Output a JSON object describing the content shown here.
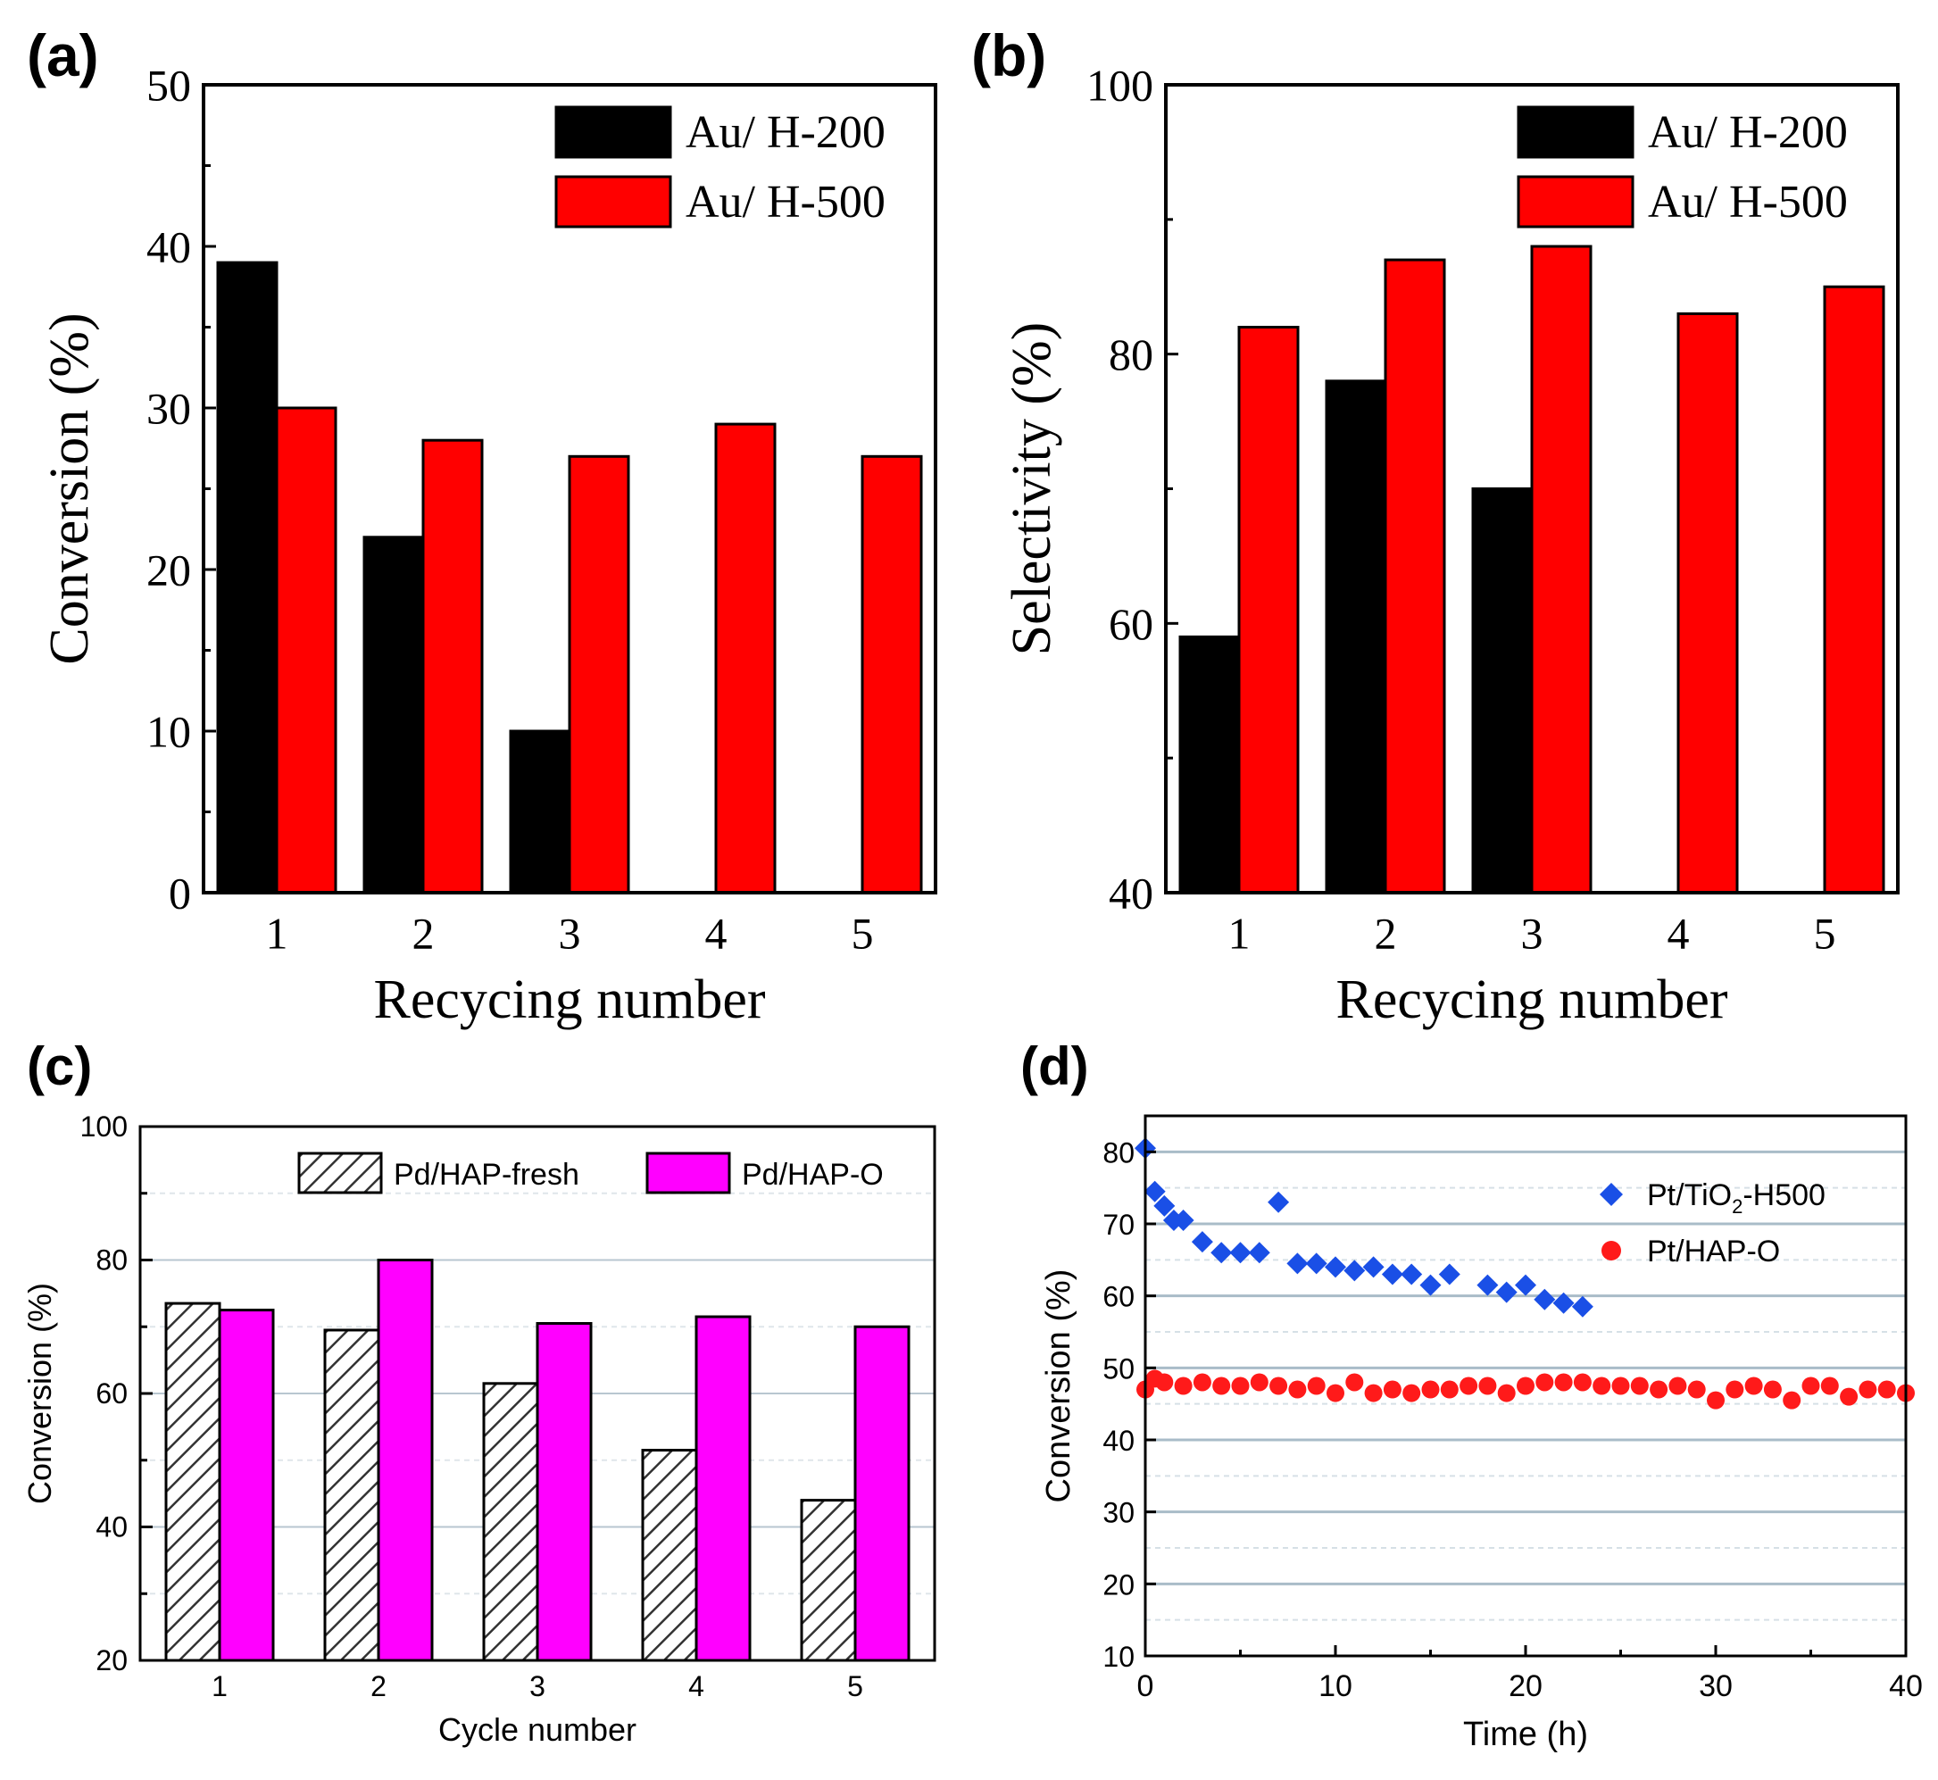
{
  "chart_data": [
    {
      "panel_label": "(a)",
      "type": "bar",
      "categories": [
        "1",
        "2",
        "3",
        "4",
        "5"
      ],
      "series": [
        {
          "name": "Au/ H-200",
          "values": [
            39,
            22,
            10,
            null,
            null
          ],
          "color": "#000000"
        },
        {
          "name": "Au/ H-500",
          "values": [
            30,
            28,
            27,
            29,
            27
          ],
          "color": "#ff0000"
        }
      ],
      "xlabel": "Recycing number",
      "ylabel": "Conversion (%)",
      "ylim": [
        0,
        50
      ],
      "yticks": [
        "0",
        "10",
        "20",
        "30",
        "40",
        "50"
      ],
      "legend": "top-right"
    },
    {
      "panel_label": "(b)",
      "type": "bar",
      "categories": [
        "1",
        "2",
        "3",
        "4",
        "5"
      ],
      "series": [
        {
          "name": "Au/ H-200",
          "values": [
            59,
            78,
            70,
            null,
            null
          ],
          "color": "#000000"
        },
        {
          "name": "Au/ H-500",
          "values": [
            82,
            87,
            88,
            83,
            85
          ],
          "color": "#ff0000"
        }
      ],
      "xlabel": "Recycing number",
      "ylabel": "Selectivity (%)",
      "ylim": [
        40,
        100
      ],
      "yticks": [
        "40",
        "60",
        "80",
        "100"
      ],
      "legend": "top-right"
    },
    {
      "panel_label": "(c)",
      "type": "bar",
      "categories": [
        "1",
        "2",
        "3",
        "4",
        "5"
      ],
      "series": [
        {
          "name": "Pd/HAP-fresh",
          "values": [
            73.5,
            69.5,
            61.5,
            51.5,
            44
          ],
          "color": "hatched"
        },
        {
          "name": "Pd/HAP-O",
          "values": [
            72.5,
            80,
            70.5,
            71.5,
            70
          ],
          "color": "#ff00ff"
        }
      ],
      "xlabel": "Cycle number",
      "ylabel": "Conversion (%)",
      "ylim": [
        20,
        100
      ],
      "yticks": [
        "20",
        "40",
        "60",
        "80",
        "100"
      ],
      "legend": "top",
      "grid": true
    },
    {
      "panel_label": "(d)",
      "type": "scatter",
      "series": [
        {
          "name": "Pt/TiO2-H500",
          "legend_main": "Pt/TiO",
          "legend_sub": "2",
          "legend_suffix": "-H500",
          "color": "#1a4fe6",
          "marker": "diamond",
          "x": [
            0,
            0.5,
            1,
            1.5,
            2,
            3,
            4,
            5,
            6,
            7,
            8,
            9,
            10,
            11,
            12,
            13,
            14,
            15,
            16,
            18,
            19,
            20,
            21,
            22,
            23
          ],
          "y": [
            80.5,
            74.5,
            72.5,
            70.5,
            70.5,
            67.5,
            66,
            66,
            66,
            73,
            64.5,
            64.5,
            64,
            63.5,
            64,
            63,
            63,
            61.5,
            63,
            61.5,
            60.5,
            61.5,
            59.5,
            59,
            58.5
          ]
        },
        {
          "name": "Pt/HAP-O",
          "legend_main": "Pt/HAP-O",
          "color": "#ff1a1a",
          "marker": "circle",
          "x": [
            0,
            0.5,
            1,
            2,
            3,
            4,
            5,
            6,
            7,
            8,
            9,
            10,
            11,
            12,
            13,
            14,
            15,
            16,
            17,
            18,
            19,
            20,
            21,
            22,
            23,
            24,
            25,
            26,
            27,
            28,
            29,
            30,
            31,
            32,
            33,
            34,
            35,
            36,
            37,
            38,
            39,
            40
          ],
          "y": [
            47,
            48.5,
            48,
            47.5,
            48,
            47.5,
            47.5,
            48,
            47.5,
            47,
            47.5,
            46.5,
            48,
            46.5,
            47,
            46.5,
            47,
            47,
            47.5,
            47.5,
            46.5,
            47.5,
            48,
            48,
            48,
            47.5,
            47.5,
            47.5,
            47,
            47.5,
            47,
            45.5,
            47,
            47.5,
            47,
            45.5,
            47.5,
            47.5,
            46,
            47,
            47,
            46.5
          ]
        }
      ],
      "xlabel": "Time (h)",
      "ylabel": "Conversion (%)",
      "xlim": [
        0,
        40
      ],
      "ylim": [
        10,
        85
      ],
      "xticks": [
        "0",
        "10",
        "20",
        "30",
        "40"
      ],
      "yticks": [
        "10",
        "20",
        "30",
        "40",
        "50",
        "60",
        "70",
        "80"
      ],
      "legend": "top-right",
      "grid": true
    }
  ]
}
